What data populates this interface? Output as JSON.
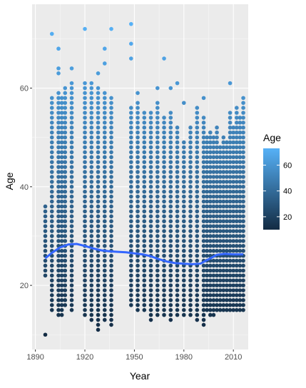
{
  "chart_data": {
    "type": "scatter",
    "title": "",
    "xlabel": "Year",
    "ylabel": "Age",
    "xlim": [
      1888,
      2019
    ],
    "ylim": [
      7,
      77
    ],
    "x_ticks": [
      1890,
      1920,
      1950,
      1980,
      2010
    ],
    "y_ticks": [
      20,
      40,
      60
    ],
    "x_tick_labels": [
      "1890",
      "1920",
      "1950",
      "1980",
      "2010"
    ],
    "y_tick_labels": [
      "20",
      "40",
      "60"
    ],
    "grid": true,
    "background": "#ebebeb",
    "legend": {
      "title": "Age",
      "placement": "right",
      "type": "colorbar",
      "min": 10,
      "max": 73,
      "ticks": [
        20,
        40,
        60
      ],
      "tick_labels": [
        "20",
        "40",
        "60"
      ],
      "color_low": "#132b43",
      "color_high": "#56b1f7"
    },
    "point_color_low": "#132b43",
    "point_color_high": "#56b1f7",
    "smooth_color": "#3366ff",
    "columns": [
      {
        "x": 1896,
        "min": 22,
        "max": 36,
        "extra": [
          10
        ]
      },
      {
        "x": 1900,
        "min": 15,
        "max": 58,
        "extra": [
          71
        ]
      },
      {
        "x": 1904,
        "min": 14,
        "max": 59,
        "extra": [
          63,
          64,
          68
        ]
      },
      {
        "x": 1906,
        "min": 14,
        "max": 58
      },
      {
        "x": 1908,
        "min": 16,
        "max": 60
      },
      {
        "x": 1912,
        "min": 15,
        "max": 60,
        "extra": [
          61,
          64
        ]
      },
      {
        "x": 1920,
        "min": 14,
        "max": 61,
        "extra": [
          72
        ]
      },
      {
        "x": 1924,
        "min": 13,
        "max": 60,
        "extra": [
          61
        ]
      },
      {
        "x": 1928,
        "min": 11,
        "max": 60,
        "extra": [
          63
        ]
      },
      {
        "x": 1932,
        "min": 13,
        "max": 59,
        "extra": [
          65,
          68
        ]
      },
      {
        "x": 1936,
        "min": 12,
        "max": 58,
        "extra": [
          72
        ]
      },
      {
        "x": 1948,
        "min": 16,
        "max": 56,
        "extra": [
          66,
          69,
          73
        ]
      },
      {
        "x": 1952,
        "min": 15,
        "max": 57,
        "extra": [
          59
        ]
      },
      {
        "x": 1956,
        "min": 15,
        "max": 55
      },
      {
        "x": 1960,
        "min": 13,
        "max": 55
      },
      {
        "x": 1964,
        "min": 14,
        "max": 57,
        "extra": [
          60
        ]
      },
      {
        "x": 1968,
        "min": 14,
        "max": 54,
        "extra": [
          66
        ]
      },
      {
        "x": 1972,
        "min": 13,
        "max": 55,
        "extra": [
          60
        ]
      },
      {
        "x": 1976,
        "min": 14,
        "max": 52,
        "extra": [
          61
        ]
      },
      {
        "x": 1980,
        "min": 14,
        "max": 49,
        "extra": [
          57
        ]
      },
      {
        "x": 1984,
        "min": 14,
        "max": 52
      },
      {
        "x": 1988,
        "min": 13,
        "max": 56
      },
      {
        "x": 1992,
        "min": 12,
        "max": 54,
        "extra": [
          58
        ]
      },
      {
        "x": 1994,
        "min": 15,
        "max": 50
      },
      {
        "x": 1996,
        "min": 14,
        "max": 51
      },
      {
        "x": 1998,
        "min": 14,
        "max": 50
      },
      {
        "x": 2000,
        "min": 15,
        "max": 52
      },
      {
        "x": 2002,
        "min": 15,
        "max": 48
      },
      {
        "x": 2004,
        "min": 15,
        "max": 50
      },
      {
        "x": 2006,
        "min": 15,
        "max": 49
      },
      {
        "x": 2008,
        "min": 15,
        "max": 55,
        "extra": [
          61
        ]
      },
      {
        "x": 2010,
        "min": 15,
        "max": 52
      },
      {
        "x": 2012,
        "min": 15,
        "max": 56
      },
      {
        "x": 2014,
        "min": 15,
        "max": 54
      },
      {
        "x": 2016,
        "min": 15,
        "max": 58
      }
    ],
    "smooth": {
      "x": [
        1896,
        1900,
        1905,
        1910,
        1915,
        1920,
        1925,
        1930,
        1935,
        1940,
        1945,
        1950,
        1955,
        1960,
        1965,
        1970,
        1975,
        1980,
        1985,
        1990,
        1995,
        2000,
        2005,
        2010,
        2016
      ],
      "y": [
        25.5,
        26.6,
        27.7,
        28.3,
        28.4,
        28.0,
        27.5,
        27.1,
        26.9,
        26.8,
        26.7,
        26.5,
        26.3,
        25.9,
        25.3,
        24.8,
        24.5,
        24.4,
        24.3,
        24.4,
        25.3,
        26.2,
        26.4,
        26.3,
        26.3
      ]
    }
  }
}
